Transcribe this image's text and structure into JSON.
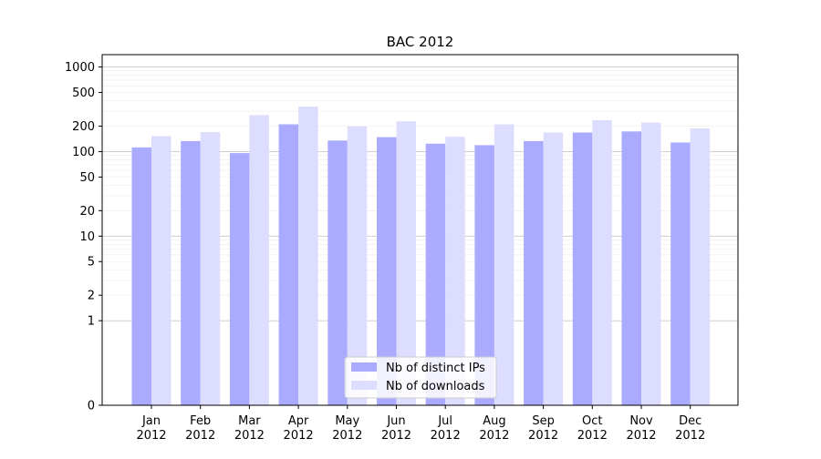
{
  "chart_data": {
    "type": "bar",
    "title": "BAC 2012",
    "xlabel": "",
    "ylabel": "",
    "scale": "symlog",
    "ylim": [
      0,
      1400
    ],
    "grid": "horizontal",
    "legend_position": "lower center",
    "categories": [
      [
        "Jan",
        "2012"
      ],
      [
        "Feb",
        "2012"
      ],
      [
        "Mar",
        "2012"
      ],
      [
        "Apr",
        "2012"
      ],
      [
        "May",
        "2012"
      ],
      [
        "Jun",
        "2012"
      ],
      [
        "Jul",
        "2012"
      ],
      [
        "Aug",
        "2012"
      ],
      [
        "Sep",
        "2012"
      ],
      [
        "Oct",
        "2012"
      ],
      [
        "Nov",
        "2012"
      ],
      [
        "Dec",
        "2012"
      ]
    ],
    "y_ticks": [
      {
        "value": 0,
        "label": "0"
      },
      {
        "value": 1,
        "label": "1"
      },
      {
        "value": 2,
        "label": "2"
      },
      {
        "value": 5,
        "label": "5"
      },
      {
        "value": 10,
        "label": "10"
      },
      {
        "value": 20,
        "label": "20"
      },
      {
        "value": 50,
        "label": "50"
      },
      {
        "value": 100,
        "label": "100"
      },
      {
        "value": 200,
        "label": "200"
      },
      {
        "value": 500,
        "label": "500"
      },
      {
        "value": 1000,
        "label": "1000"
      }
    ],
    "series": [
      {
        "name": "Nb of distinct IPs",
        "color": "#aaaaff",
        "values": [
          112,
          133,
          96,
          210,
          135,
          148,
          124,
          119,
          133,
          168,
          173,
          128
        ]
      },
      {
        "name": "Nb of downloads",
        "color": "#ddddff",
        "values": [
          152,
          170,
          270,
          340,
          198,
          228,
          150,
          210,
          168,
          235,
          220,
          188
        ]
      }
    ]
  }
}
